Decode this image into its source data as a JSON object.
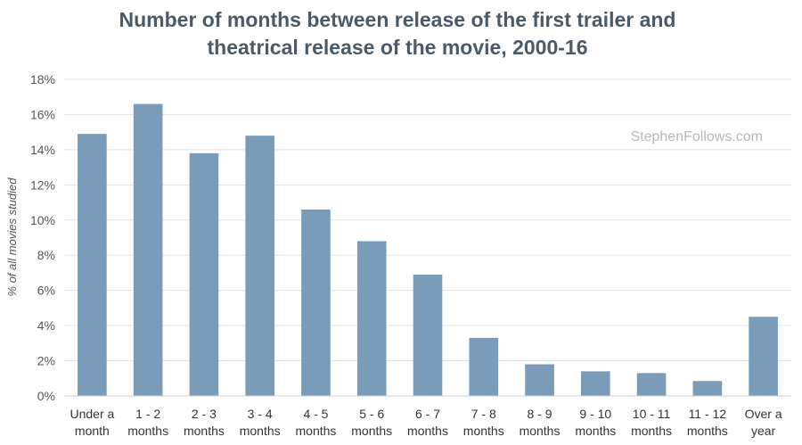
{
  "chart_data": {
    "type": "bar",
    "title": "Number of months between release of the first trailer and theatrical release of the movie, 2000-16",
    "title_lines": [
      "Number of months between release of the first trailer and",
      "theatrical release of the movie, 2000-16"
    ],
    "ylabel": "% of all movies studied",
    "xlabel": "",
    "ylim": [
      0,
      18
    ],
    "yticks": [
      0,
      2,
      4,
      6,
      8,
      10,
      12,
      14,
      16,
      18
    ],
    "ytick_suffix": "%",
    "grid": true,
    "bar_color": "#7a9cb8",
    "categories": [
      [
        "Under a",
        "month"
      ],
      [
        "1 - 2",
        "months"
      ],
      [
        "2 - 3",
        "months"
      ],
      [
        "3 - 4",
        "months"
      ],
      [
        "4 - 5",
        "months"
      ],
      [
        "5 - 6",
        "months"
      ],
      [
        "6 - 7",
        "months"
      ],
      [
        "7 - 8",
        "months"
      ],
      [
        "8 - 9",
        "months"
      ],
      [
        "9 - 10",
        "months"
      ],
      [
        "10 - 11",
        "months"
      ],
      [
        "11 - 12",
        "months"
      ],
      [
        "Over a",
        "year"
      ]
    ],
    "values": [
      14.9,
      16.6,
      13.8,
      14.8,
      10.6,
      8.8,
      6.9,
      3.3,
      1.8,
      1.4,
      1.3,
      0.85,
      4.5
    ],
    "watermark": "StephenFollows.com"
  }
}
